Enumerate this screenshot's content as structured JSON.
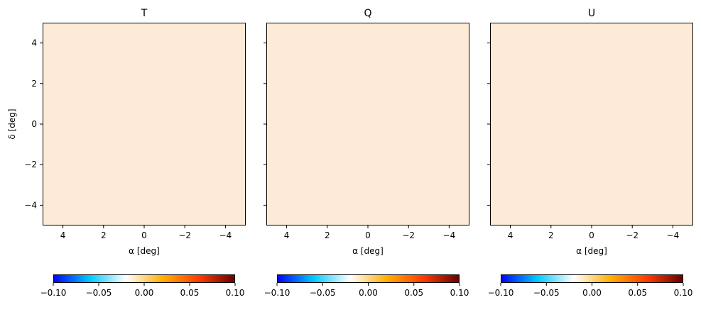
{
  "chart_data": [
    {
      "type": "heatmap",
      "title": "T",
      "xlabel": "α [deg]",
      "ylabel": "δ [deg]",
      "xlim": [
        5,
        -5
      ],
      "ylim": [
        -5,
        5
      ],
      "xticks": [
        4,
        2,
        0,
        -2,
        -4
      ],
      "yticks": [
        4,
        2,
        0,
        -2,
        -4
      ],
      "xtick_labels": [
        "4",
        "2",
        "0",
        "−2",
        "−4"
      ],
      "ytick_labels": [
        "4",
        "2",
        "0",
        "−2",
        "−4"
      ],
      "value": 0.02,
      "fill_color": "#feebd7",
      "grid": false,
      "colorbar": {
        "orientation": "horizontal",
        "min": -0.1,
        "max": 0.1,
        "ticks": [
          -0.1,
          -0.05,
          0.0,
          0.05,
          0.1
        ],
        "tick_labels": [
          "−0.10",
          "−0.05",
          "0.00",
          "0.05",
          "0.10"
        ],
        "colors": [
          "#0000ff",
          "#00c8ff",
          "#ffffff",
          "#ffb000",
          "#ff3c00",
          "#640000"
        ]
      }
    },
    {
      "type": "heatmap",
      "title": "Q",
      "xlabel": "α [deg]",
      "ylabel": "",
      "xlim": [
        5,
        -5
      ],
      "ylim": [
        -5,
        5
      ],
      "xticks": [
        4,
        2,
        0,
        -2,
        -4
      ],
      "yticks": [
        4,
        2,
        0,
        -2,
        -4
      ],
      "xtick_labels": [
        "4",
        "2",
        "0",
        "−2",
        "−4"
      ],
      "ytick_labels": [],
      "value": 0.02,
      "fill_color": "#feebd7",
      "grid": false,
      "colorbar": {
        "orientation": "horizontal",
        "min": -0.1,
        "max": 0.1,
        "ticks": [
          -0.1,
          -0.05,
          0.0,
          0.05,
          0.1
        ],
        "tick_labels": [
          "−0.10",
          "−0.05",
          "0.00",
          "0.05",
          "0.10"
        ],
        "colors": [
          "#0000ff",
          "#00c8ff",
          "#ffffff",
          "#ffb000",
          "#ff3c00",
          "#640000"
        ]
      }
    },
    {
      "type": "heatmap",
      "title": "U",
      "xlabel": "α [deg]",
      "ylabel": "",
      "xlim": [
        5,
        -5
      ],
      "ylim": [
        -5,
        5
      ],
      "xticks": [
        4,
        2,
        0,
        -2,
        -4
      ],
      "yticks": [
        4,
        2,
        0,
        -2,
        -4
      ],
      "xtick_labels": [
        "4",
        "2",
        "0",
        "−2",
        "−4"
      ],
      "ytick_labels": [],
      "value": 0.02,
      "fill_color": "#feebd7",
      "grid": false,
      "colorbar": {
        "orientation": "horizontal",
        "min": -0.1,
        "max": 0.1,
        "ticks": [
          -0.1,
          -0.05,
          0.0,
          0.05,
          0.1
        ],
        "tick_labels": [
          "−0.10",
          "−0.05",
          "0.00",
          "0.05",
          "0.10"
        ],
        "colors": [
          "#0000ff",
          "#00c8ff",
          "#ffffff",
          "#ffb000",
          "#ff3c00",
          "#640000"
        ]
      }
    }
  ]
}
